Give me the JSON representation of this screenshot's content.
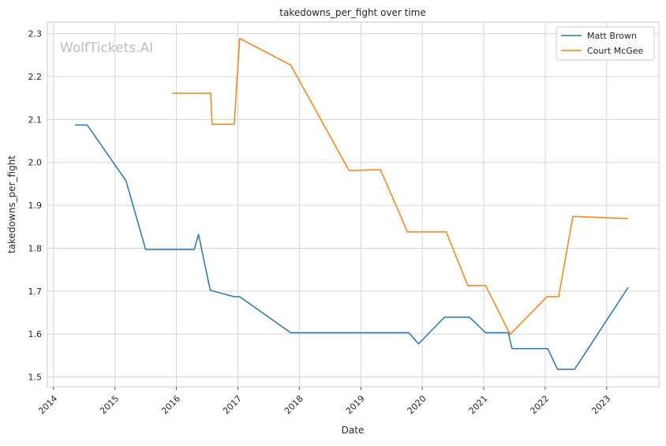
{
  "chart_data": {
    "type": "line",
    "title": "takedowns_per_fight over time",
    "xlabel": "Date",
    "ylabel": "takedowns_per_fight",
    "watermark": "WolfTickets.AI",
    "xlim": [
      2013.9,
      2023.85
    ],
    "ylim": [
      1.477,
      2.327
    ],
    "xticks": [
      2014,
      2015,
      2016,
      2017,
      2018,
      2019,
      2020,
      2021,
      2022,
      2023
    ],
    "xtick_labels": [
      "2014",
      "2015",
      "2016",
      "2017",
      "2018",
      "2019",
      "2020",
      "2021",
      "2022",
      "2023"
    ],
    "yticks": [
      1.5,
      1.6,
      1.7,
      1.8,
      1.9,
      2.0,
      2.1,
      2.2,
      2.3
    ],
    "ytick_labels": [
      "1.5",
      "1.6",
      "1.7",
      "1.8",
      "1.9",
      "2.0",
      "2.1",
      "2.2",
      "2.3"
    ],
    "grid": true,
    "legend_position": "top-right",
    "series": [
      {
        "name": "Matt Brown",
        "color": "#1f77b4",
        "x": [
          2014.35,
          2014.55,
          2015.18,
          2015.5,
          2016.29,
          2016.36,
          2016.55,
          2016.94,
          2017.03,
          2017.86,
          2019.78,
          2019.94,
          2020.36,
          2020.77,
          2021.03,
          2021.4,
          2021.46,
          2022.04,
          2022.2,
          2022.48,
          2023.35
        ],
        "y": [
          2.087,
          2.087,
          1.957,
          1.797,
          1.797,
          1.832,
          1.702,
          1.687,
          1.687,
          1.603,
          1.603,
          1.577,
          1.639,
          1.639,
          1.603,
          1.603,
          1.566,
          1.566,
          1.518,
          1.518,
          1.709
        ]
      },
      {
        "name": "Court McGee",
        "color": "#ff7f0e",
        "x": [
          2015.93,
          2016.56,
          2016.58,
          2016.94,
          2017.03,
          2017.86,
          2018.81,
          2019.32,
          2019.76,
          2020.39,
          2020.74,
          2021.03,
          2021.43,
          2022.03,
          2022.22,
          2022.45,
          2023.35
        ],
        "y": [
          2.161,
          2.161,
          2.089,
          2.089,
          2.289,
          2.227,
          1.981,
          1.983,
          1.838,
          1.838,
          1.713,
          1.713,
          1.599,
          1.687,
          1.687,
          1.874,
          1.869
        ]
      }
    ]
  }
}
